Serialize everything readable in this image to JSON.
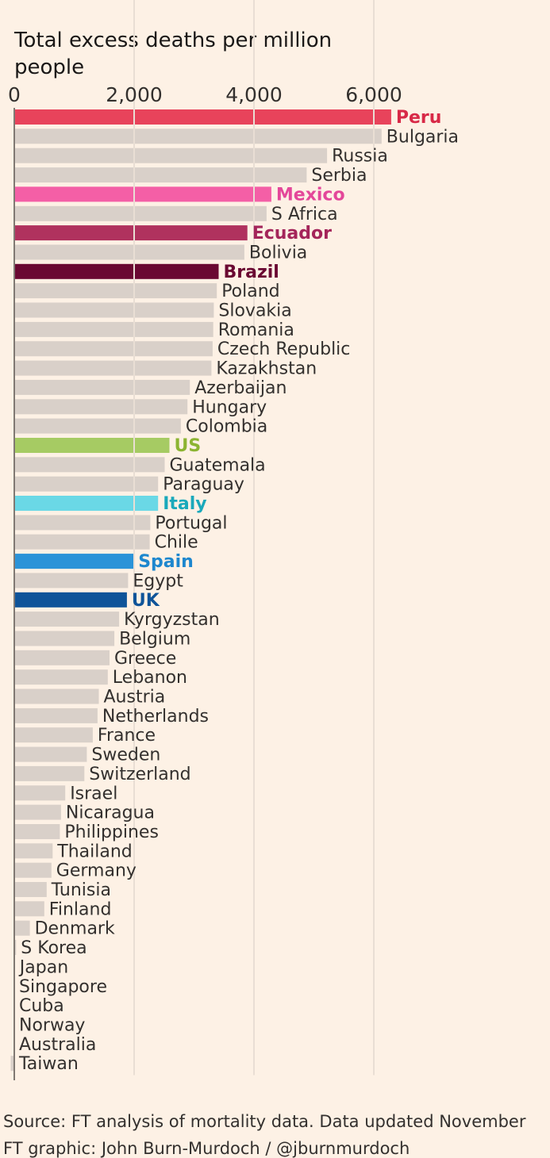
{
  "chart_data": {
    "type": "bar",
    "orientation": "horizontal",
    "title": "Total excess deaths per million people",
    "xlabel": "",
    "ylabel": "",
    "xlim": [
      0,
      6700
    ],
    "xticks": [
      0,
      2000,
      4000,
      6000
    ],
    "xtick_labels": [
      "0",
      "2,000",
      "4,000",
      "6,000"
    ],
    "grid": true,
    "default_color": "#d9d0c9",
    "categories": [
      "Peru",
      "Bulgaria",
      "Russia",
      "Serbia",
      "Mexico",
      "S Africa",
      "Ecuador",
      "Bolivia",
      "Brazil",
      "Poland",
      "Slovakia",
      "Romania",
      "Czech Republic",
      "Kazakhstan",
      "Azerbaijan",
      "Hungary",
      "Colombia",
      "US",
      "Guatemala",
      "Paraguay",
      "Italy",
      "Portugal",
      "Chile",
      "Spain",
      "Egypt",
      "UK",
      "Kyrgyzstan",
      "Belgium",
      "Greece",
      "Lebanon",
      "Austria",
      "Netherlands",
      "France",
      "Sweden",
      "Switzerland",
      "Israel",
      "Nicaragua",
      "Philippines",
      "Thailand",
      "Germany",
      "Tunisia",
      "Finland",
      "Denmark",
      "S Korea",
      "Japan",
      "Singapore",
      "Cuba",
      "Norway",
      "Australia",
      "Taiwan"
    ],
    "values": [
      6290,
      6130,
      5220,
      4880,
      4290,
      4210,
      3890,
      3840,
      3410,
      3380,
      3330,
      3320,
      3310,
      3290,
      2930,
      2890,
      2780,
      2590,
      2510,
      2400,
      2400,
      2270,
      2260,
      1990,
      1900,
      1880,
      1750,
      1670,
      1590,
      1560,
      1410,
      1390,
      1310,
      1210,
      1170,
      850,
      780,
      760,
      640,
      620,
      540,
      500,
      260,
      30,
      10,
      0,
      0,
      0,
      0,
      -60
    ],
    "highlights": {
      "Peru": "#e8435b",
      "Mexico": "#f45fa6",
      "Ecuador": "#b0325e",
      "Brazil": "#6a0832",
      "US": "#a6cb63",
      "Italy": "#6ad8e6",
      "Spain": "#2b93d8",
      "UK": "#0f5499"
    },
    "label_colors": {
      "Peru": "#d82947",
      "Mexico": "#e4479a",
      "Ecuador": "#a4255a",
      "Brazil": "#6a0832",
      "US": "#8cb432",
      "Italy": "#1aa9bb",
      "Spain": "#1d87ce",
      "UK": "#0f5499"
    }
  },
  "source_text": "Source: FT analysis of mortality data. Data updated November",
  "credit_text": "FT graphic: John Burn-Murdoch / @jburnmurdoch"
}
